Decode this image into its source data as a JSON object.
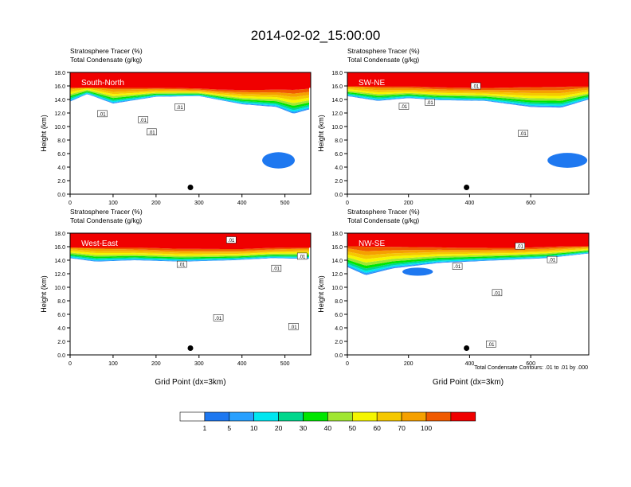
{
  "page": {
    "title": "2014-02-02_15:00:00",
    "contour_note": "Total Condensate Contours: .01 to .01 by .000"
  },
  "colors": {
    "white": "#ffffff",
    "blue": "#1e78f0",
    "lightblue": "#28a0ff",
    "cyan": "#00e6f0",
    "teal": "#00d78c",
    "green": "#00e600",
    "yellowgreen": "#a0e632",
    "yellow": "#f5f500",
    "gold": "#f5c800",
    "orange": "#f5a000",
    "redorange": "#f05a00",
    "red": "#f00000"
  },
  "chart_data": [
    {
      "type": "heatmap",
      "title": "South-North",
      "left_label_1": "Stratosphere Tracer   (%)",
      "left_label_2": "Total Condensate   (g/kg)",
      "ylabel": "Height (km)",
      "xlabel": "",
      "xlim": [
        0,
        560
      ],
      "ylim": [
        0,
        18
      ],
      "xticks": [
        0,
        100,
        200,
        300,
        400,
        500
      ],
      "yticks": [
        "0.0",
        "2.0",
        "4.0",
        "6.0",
        "8.0",
        "10.0",
        "12.0",
        "14.0",
        "16.0",
        "18.0"
      ],
      "contour_labels": [
        {
          "text": ".01",
          "x": 75,
          "y": 11.9
        },
        {
          "text": ".01",
          "x": 170,
          "y": 11.0
        },
        {
          "text": ".01",
          "x": 190,
          "y": 9.2
        },
        {
          "text": ".01",
          "x": 255,
          "y": 12.9
        }
      ],
      "marker": {
        "x": 280,
        "y": 1.0
      },
      "tracer_top": [
        [
          0,
          16.6
        ],
        [
          60,
          16.4
        ],
        [
          150,
          16.1
        ],
        [
          250,
          15.9
        ],
        [
          350,
          15.7
        ],
        [
          450,
          15.8
        ],
        [
          560,
          16.1
        ]
      ],
      "tracer_bottom": [
        [
          0,
          13.7
        ],
        [
          40,
          14.8
        ],
        [
          100,
          13.4
        ],
        [
          200,
          14.4
        ],
        [
          300,
          14.5
        ],
        [
          400,
          13.3
        ],
        [
          480,
          12.9
        ],
        [
          520,
          11.9
        ],
        [
          560,
          12.6
        ]
      ],
      "blobs": [
        {
          "x": 485,
          "y": 5.0,
          "rx": 38,
          "ry": 1.2
        }
      ]
    },
    {
      "type": "heatmap",
      "title": "SW-NE",
      "left_label_1": "Stratosphere Tracer   (%)",
      "left_label_2": "Total Condensate   (g/kg)",
      "ylabel": "Height (km)",
      "xlabel": "",
      "xlim": [
        0,
        790
      ],
      "ylim": [
        0,
        18
      ],
      "xticks": [
        0,
        200,
        400,
        600
      ],
      "yticks": [
        "0.0",
        "2.0",
        "4.0",
        "6.0",
        "8.0",
        "10.0",
        "12.0",
        "14.0",
        "16.0",
        "18.0"
      ],
      "contour_labels": [
        {
          "text": ".01",
          "x": 185,
          "y": 13.0
        },
        {
          "text": ".01",
          "x": 270,
          "y": 13.6
        },
        {
          "text": ".01",
          "x": 420,
          "y": 16.0
        },
        {
          "text": ".01",
          "x": 575,
          "y": 9.0
        }
      ],
      "marker": {
        "x": 390,
        "y": 1.0
      },
      "tracer_top": [
        [
          0,
          16.6
        ],
        [
          150,
          16.3
        ],
        [
          300,
          16.1
        ],
        [
          450,
          16.0
        ],
        [
          600,
          16.3
        ],
        [
          790,
          16.4
        ]
      ],
      "tracer_bottom": [
        [
          0,
          14.5
        ],
        [
          100,
          13.8
        ],
        [
          200,
          14.2
        ],
        [
          300,
          13.9
        ],
        [
          450,
          13.8
        ],
        [
          600,
          12.9
        ],
        [
          700,
          12.8
        ],
        [
          790,
          14.0
        ]
      ],
      "blobs": [
        {
          "x": 720,
          "y": 5.0,
          "rx": 65,
          "ry": 1.1
        }
      ]
    },
    {
      "type": "heatmap",
      "title": "West-East",
      "left_label_1": "Stratosphere Tracer   (%)",
      "left_label_2": "Total Condensate   (g/kg)",
      "ylabel": "Height (km)",
      "xlabel": "Grid Point (dx=3km)",
      "xlim": [
        0,
        560
      ],
      "ylim": [
        0,
        18
      ],
      "xticks": [
        0,
        100,
        200,
        300,
        400,
        500
      ],
      "yticks": [
        "0.0",
        "2.0",
        "4.0",
        "6.0",
        "8.0",
        "10.0",
        "12.0",
        "14.0",
        "16.0",
        "18.0"
      ],
      "contour_labels": [
        {
          "text": ".01",
          "x": 260,
          "y": 13.4
        },
        {
          "text": ".01",
          "x": 375,
          "y": 17.0
        },
        {
          "text": ".01",
          "x": 480,
          "y": 12.8
        },
        {
          "text": ".01",
          "x": 540,
          "y": 14.6
        },
        {
          "text": ".01",
          "x": 345,
          "y": 5.5
        },
        {
          "text": ".01",
          "x": 520,
          "y": 4.2
        }
      ],
      "marker": {
        "x": 280,
        "y": 1.0
      },
      "tracer_top": [
        [
          0,
          16.5
        ],
        [
          100,
          16.3
        ],
        [
          250,
          16.0
        ],
        [
          400,
          15.9
        ],
        [
          560,
          16.3
        ]
      ],
      "tracer_bottom": [
        [
          0,
          14.3
        ],
        [
          60,
          13.8
        ],
        [
          150,
          14.0
        ],
        [
          260,
          13.8
        ],
        [
          380,
          14.0
        ],
        [
          470,
          14.3
        ],
        [
          560,
          14.2
        ]
      ],
      "blobs": []
    },
    {
      "type": "heatmap",
      "title": "NW-SE",
      "left_label_1": "Stratosphere Tracer   (%)",
      "left_label_2": "Total Condensate   (g/kg)",
      "ylabel": "Height (km)",
      "xlabel": "Grid Point (dx=3km)",
      "xlim": [
        0,
        790
      ],
      "ylim": [
        0,
        18
      ],
      "xticks": [
        0,
        200,
        400,
        600
      ],
      "yticks": [
        "0.0",
        "2.0",
        "4.0",
        "6.0",
        "8.0",
        "10.0",
        "12.0",
        "14.0",
        "16.0",
        "18.0"
      ],
      "contour_labels": [
        {
          "text": ".01",
          "x": 565,
          "y": 16.1
        },
        {
          "text": ".01",
          "x": 360,
          "y": 13.1
        },
        {
          "text": ".01",
          "x": 670,
          "y": 14.1
        },
        {
          "text": ".01",
          "x": 490,
          "y": 9.2
        },
        {
          "text": ".01",
          "x": 470,
          "y": 1.6
        }
      ],
      "marker": {
        "x": 390,
        "y": 1.0
      },
      "tracer_top": [
        [
          0,
          16.8
        ],
        [
          150,
          16.5
        ],
        [
          350,
          16.2
        ],
        [
          550,
          16.1
        ],
        [
          790,
          16.4
        ]
      ],
      "tracer_bottom": [
        [
          0,
          13.0
        ],
        [
          60,
          11.8
        ],
        [
          150,
          12.8
        ],
        [
          300,
          13.6
        ],
        [
          500,
          14.0
        ],
        [
          650,
          14.3
        ],
        [
          790,
          15.0
        ]
      ],
      "blobs": [
        {
          "x": 230,
          "y": 12.3,
          "rx": 50,
          "ry": 0.6
        }
      ]
    }
  ],
  "legend": {
    "labels": [
      "1",
      "5",
      "10",
      "20",
      "30",
      "40",
      "50",
      "60",
      "70",
      "100"
    ],
    "colors": [
      "#ffffff",
      "#1e78f0",
      "#28a0ff",
      "#00e6f0",
      "#00d78c",
      "#00e600",
      "#a0e632",
      "#f5f500",
      "#f5c800",
      "#f5a000",
      "#f05a00",
      "#f00000"
    ]
  }
}
